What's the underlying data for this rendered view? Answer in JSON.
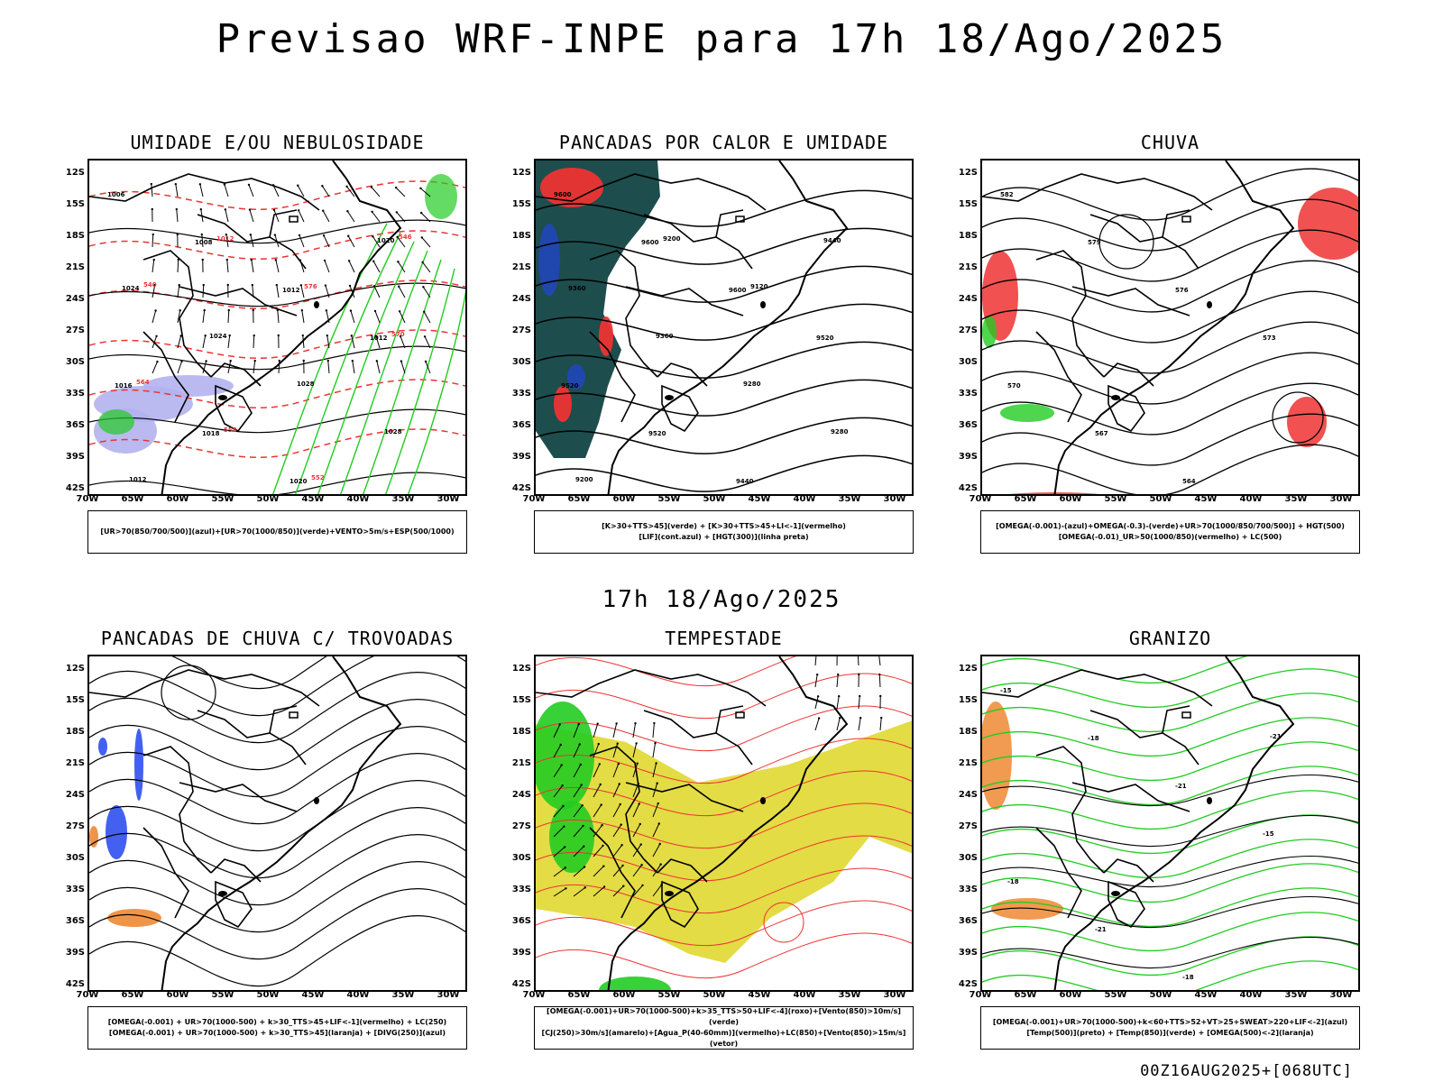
{
  "title": "Previsao WRF-INPE  para 17h 18/Ago/2025",
  "subtitle": "17h 18/Ago/2025",
  "footer": "00Z16AUG2025+[068UTC]",
  "axes": {
    "lat_labels": [
      "12S",
      "15S",
      "18S",
      "21S",
      "24S",
      "27S",
      "30S",
      "33S",
      "36S",
      "39S",
      "42S"
    ],
    "lon_labels": [
      "70W",
      "65W",
      "60W",
      "55W",
      "50W",
      "45W",
      "40W",
      "35W",
      "30W"
    ]
  },
  "colors": {
    "green": "#22cc22",
    "red": "#ee3333",
    "blue": "#2244ee",
    "lavender": "#b3b3ee",
    "teal": "#1e4d4d",
    "orange": "#ee8833",
    "yellow": "#e0d830",
    "black": "#000000"
  },
  "panels": [
    {
      "id": "umidade",
      "title": "UMIDADE E/OU NEBULOSIDADE",
      "legend": [
        "[UR>70(850/700/500)](azul)+[UR>70(1000/850)](verde)+VENTO>5m/s+ESP(500/1000)"
      ],
      "labels": [
        "1006",
        "1008",
        "1012",
        "1012",
        "1016",
        "1018",
        "1020",
        "1020",
        "1024",
        "1024",
        "1028",
        "1028",
        "1012",
        "1012",
        "576",
        "570",
        "564",
        "558",
        "552",
        "546",
        "540"
      ]
    },
    {
      "id": "pancadas-calor",
      "title": "PANCADAS POR CALOR E UMIDADE",
      "legend": [
        "[K>30+TTS>45](verde) + [K>30+TTS>45+LI<-1](vermelho)",
        "[LIF](cont.azul) + [HGT(300)](linha preta)"
      ],
      "labels": [
        "9600",
        "9600",
        "9600",
        "9520",
        "9520",
        "9520",
        "9440",
        "9440",
        "9360",
        "9360",
        "9280",
        "9280",
        "9200",
        "9200",
        "9120"
      ]
    },
    {
      "id": "chuva",
      "title": "CHUVA",
      "legend": [
        "[OMEGA(-0.001)-(azul)+OMEGA(-0.3)-(verde)+UR>70(1000/850/700/500)] + HGT(500)",
        "[OMEGA(-0.01)_UR>50(1000/850)(vermelho) + LC(500)"
      ],
      "labels": [
        "582",
        "579",
        "576",
        "573",
        "570",
        "567",
        "564"
      ]
    },
    {
      "id": "trovoadas",
      "title": "PANCADAS DE CHUVA C/ TROVOADAS",
      "legend": [
        "[OMEGA(-0.001) + UR>70(1000-500) + k>30_TTS>45+LIF<-1](vermelho) + LC(250)",
        "[OMEGA(-0.001) + UR>70(1000-500) + k>30_TTS>45](laranja) + [DIVG(250)](azul)"
      ],
      "labels": []
    },
    {
      "id": "tempestade",
      "title": "TEMPESTADE",
      "legend": [
        "[OMEGA(-0.001)+UR>70(1000-500)+k>35_TTS>50+LIF<-4](roxo)+[Vento(850)>10m/s](verde)",
        "[CJ(250)>30m/s](amarelo)+[Agua_P(40-60mm)](vermelho)+LC(850)+[Vento(850)>15m/s](vetor)"
      ],
      "labels": []
    },
    {
      "id": "granizo",
      "title": "GRANIZO",
      "legend": [
        "[OMEGA(-0.001)+UR>70(1000-500)+k<60+TTS>52+VT>25+SWEAT>220+LIF<-2](azul)",
        "[Temp(500)](preto) + [Temp(850)](verde) + [OMEGA(500)<-2](laranja)"
      ],
      "labels": [
        "-15",
        "-18",
        "-21",
        "-15",
        "-18",
        "-21",
        "-18",
        "-21"
      ]
    }
  ]
}
